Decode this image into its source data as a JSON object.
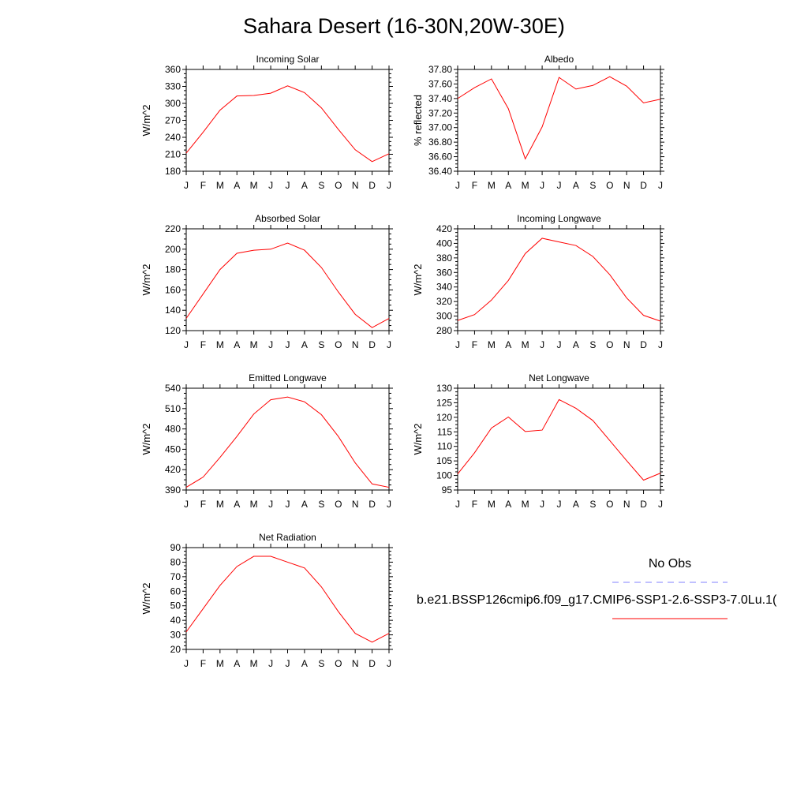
{
  "title": "Sahara Desert (16-30N,20W-30E)",
  "legend": {
    "obs_label": "No Obs",
    "model_label": "b.e21.BSSP126cmip6.f09_g17.CMIP6-SSP1-2.6-SSP3-7.0Lu.1(",
    "obs_color": "#8080ff",
    "model_color": "#ff0000"
  },
  "chart_data": [
    {
      "type": "line",
      "title": "Incoming Solar",
      "ylabel": "W/m^2",
      "x": [
        "J",
        "F",
        "M",
        "A",
        "M",
        "J",
        "J",
        "A",
        "S",
        "O",
        "N",
        "D",
        "J"
      ],
      "ylim": [
        180,
        360
      ],
      "yticks": [
        "180",
        "210",
        "240",
        "270",
        "300",
        "330",
        "360"
      ],
      "series": [
        {
          "color": "#ff0000",
          "values": [
            212,
            249,
            288,
            313,
            314,
            318,
            331,
            319,
            292,
            254,
            218,
            197,
            211
          ]
        }
      ]
    },
    {
      "type": "line",
      "title": "Albedo",
      "ylabel": "% reflected",
      "x": [
        "J",
        "F",
        "M",
        "A",
        "M",
        "J",
        "J",
        "A",
        "S",
        "O",
        "N",
        "D",
        "J"
      ],
      "ylim": [
        36.4,
        37.8
      ],
      "yticks": [
        "36.40",
        "36.60",
        "36.80",
        "37.00",
        "37.20",
        "37.40",
        "37.60",
        "37.80"
      ],
      "series": [
        {
          "color": "#ff0000",
          "values": [
            37.4,
            37.55,
            37.67,
            37.26,
            36.57,
            37.01,
            37.69,
            37.53,
            37.58,
            37.7,
            37.57,
            37.34,
            37.39
          ]
        }
      ]
    },
    {
      "type": "line",
      "title": "Absorbed Solar",
      "ylabel": "W/m^2",
      "x": [
        "J",
        "F",
        "M",
        "A",
        "M",
        "J",
        "J",
        "A",
        "S",
        "O",
        "N",
        "D",
        "J"
      ],
      "ylim": [
        120,
        220
      ],
      "yticks": [
        "120",
        "140",
        "160",
        "180",
        "200",
        "220"
      ],
      "series": [
        {
          "color": "#ff0000",
          "values": [
            132,
            156,
            180,
            196,
            199,
            200,
            206,
            199,
            182,
            158,
            136,
            123,
            132
          ]
        }
      ]
    },
    {
      "type": "line",
      "title": "Incoming Longwave",
      "ylabel": "W/m^2",
      "x": [
        "J",
        "F",
        "M",
        "A",
        "M",
        "J",
        "J",
        "A",
        "S",
        "O",
        "N",
        "D",
        "J"
      ],
      "ylim": [
        280,
        420
      ],
      "yticks": [
        "280",
        "300",
        "320",
        "340",
        "360",
        "380",
        "400",
        "420"
      ],
      "series": [
        {
          "color": "#ff0000",
          "values": [
            294,
            302,
            322,
            349,
            386,
            407,
            402,
            397,
            382,
            357,
            325,
            301,
            293
          ]
        }
      ]
    },
    {
      "type": "line",
      "title": "Emitted Longwave",
      "ylabel": "W/m^2",
      "x": [
        "J",
        "F",
        "M",
        "A",
        "M",
        "J",
        "J",
        "A",
        "S",
        "O",
        "N",
        "D",
        "J"
      ],
      "ylim": [
        390,
        540
      ],
      "yticks": [
        "390",
        "420",
        "450",
        "480",
        "510",
        "540"
      ],
      "series": [
        {
          "color": "#ff0000",
          "values": [
            394,
            409,
            438,
            469,
            502,
            523,
            527,
            520,
            501,
            469,
            430,
            399,
            394
          ]
        }
      ]
    },
    {
      "type": "line",
      "title": "Net Longwave",
      "ylabel": "W/m^2",
      "x": [
        "J",
        "F",
        "M",
        "A",
        "M",
        "J",
        "J",
        "A",
        "S",
        "O",
        "N",
        "D",
        "J"
      ],
      "ylim": [
        95,
        130
      ],
      "yticks": [
        "95",
        "100",
        "105",
        "110",
        "115",
        "120",
        "125",
        "130"
      ],
      "series": [
        {
          "color": "#ff0000",
          "values": [
            100.5,
            107.8,
            116.3,
            120.1,
            115.1,
            115.6,
            126.1,
            123.1,
            118.9,
            112.0,
            105.1,
            98.4,
            100.8
          ]
        }
      ]
    },
    {
      "type": "line",
      "title": "Net Radiation",
      "ylabel": "W/m^2",
      "x": [
        "J",
        "F",
        "M",
        "A",
        "M",
        "J",
        "J",
        "A",
        "S",
        "O",
        "N",
        "D",
        "J"
      ],
      "ylim": [
        20,
        90
      ],
      "yticks": [
        "20",
        "30",
        "40",
        "50",
        "60",
        "70",
        "80",
        "90"
      ],
      "series": [
        {
          "color": "#ff0000",
          "values": [
            32,
            48,
            64,
            77,
            84,
            84,
            80,
            76,
            63,
            46,
            31,
            25,
            31
          ]
        }
      ]
    }
  ]
}
